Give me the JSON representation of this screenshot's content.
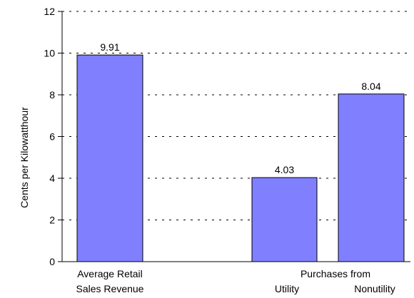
{
  "chart_data": {
    "type": "bar",
    "ylabel": "Cents per Kilowatthour",
    "ylim": [
      0,
      12
    ],
    "yticks": [
      0,
      2,
      4,
      6,
      8,
      10,
      12
    ],
    "grid": true,
    "colors": {
      "bar": "#8080ff",
      "bar_stroke": "#000000",
      "grid": "#000000",
      "axis": "#000000"
    },
    "categories": [
      {
        "label_lines": [
          "Average Retail",
          "Sales Revenue"
        ],
        "value": 9.91,
        "value_label": "9.91"
      },
      {
        "label_lines": [
          "Utility"
        ],
        "value": 4.03,
        "value_label": "4.03"
      },
      {
        "label_lines": [
          "Nonutility"
        ],
        "value": 8.04,
        "value_label": "8.04"
      }
    ],
    "group_label": "Purchases from"
  }
}
